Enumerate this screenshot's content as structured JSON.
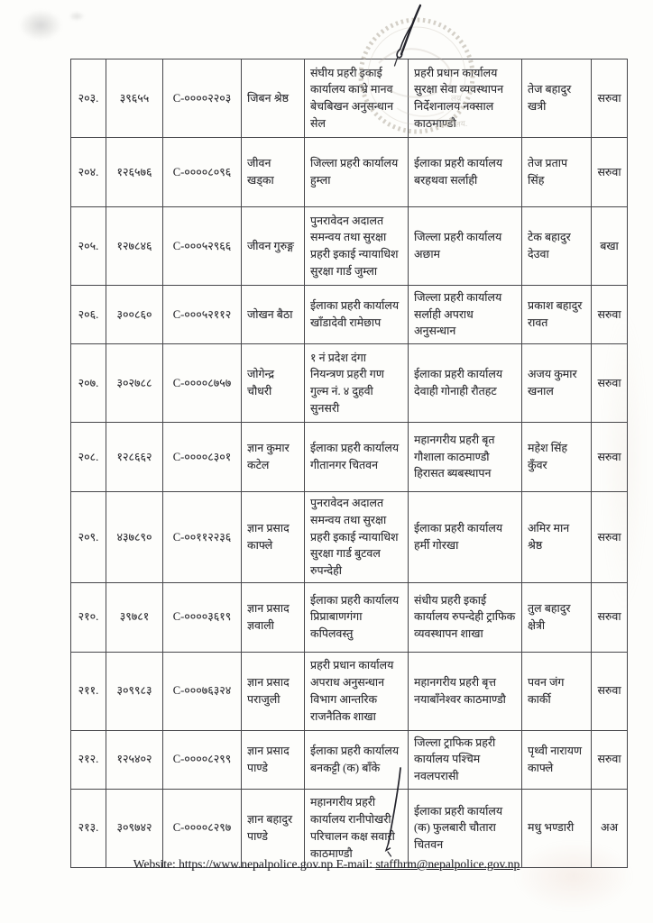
{
  "table": {
    "rows": [
      [
        "२०३.",
        "३९६५५",
        "C-००००२२०३",
        "जिबन श्रेष्ठ",
        "संघीय प्रहरी इकाई कार्यालय काभ्रे मानव बेचबिखन अनुसन्धान सेल",
        "प्रहरी प्रधान कार्यालय सुरक्षा सेवा व्यवस्थापन निर्देशनालय नक्साल काठमाण्डौ",
        "तेज बहादुर खत्री",
        "सरुवा"
      ],
      [
        "२०४.",
        "१२६५७६",
        "C-००००८०९६",
        "जीवन खड्का",
        "जिल्ला प्रहरी कार्यालय हुम्ला",
        "ईलाका प्रहरी कार्यालय बरहथवा सर्लाही",
        "तेज प्रताप सिंह",
        "सरुवा"
      ],
      [
        "२०५.",
        "१२७८४६",
        "C-०००५२९६६",
        "जीवन गुरुङ्ग",
        "पुनरावेदन अदालत समन्वय तथा सुरक्षा प्रहरी इकाई न्यायाधिश सुरक्षा गार्ड जुम्ला",
        "जिल्ला प्रहरी कार्यालय अछाम",
        "टेक बहादुर देउवा",
        "बखा"
      ],
      [
        "२०६.",
        "३००८६०",
        "C-०००५२११२",
        "जोखन बैठा",
        "ईलाका प्रहरी कार्यालय खाँडादेवी रामेछाप",
        "जिल्ला प्रहरी कार्यालय सर्लाही अपराध अनुसन्धान",
        "प्रकाश बहादुर रावत",
        "सरुवा"
      ],
      [
        "२०७.",
        "३०२७८८",
        "C-००००८७५७",
        "जोगेन्द्र चौधरी",
        "१ नं प्रदेश दंगा नियन्त्रण प्रहरी गण गुल्म नं. ४ दुहवी सुनसरी",
        "ईलाका प्रहरी कार्यालय देवाही गोनाही रौतहट",
        "अजय कुमार खनाल",
        "सरुवा"
      ],
      [
        "२०८.",
        "१२८६६२",
        "C-००००८३०१",
        "ज्ञान कुमार कटेल",
        "ईलाका प्रहरी कार्यालय गीतानगर चितवन",
        "महानगरीय प्रहरी बृत गौशाला काठमाण्डौ हिरासत ब्यबस्थापन",
        "महेश सिंह कुँवर",
        "सरुवा"
      ],
      [
        "२०९.",
        "४३७८९०",
        "C-००११२२३६",
        "ज्ञान प्रसाद काफ्ले",
        "पुनरावेदन अदालत समन्वय तथा सुरक्षा प्रहरी इकाई न्यायाधिश सुरक्षा गार्ड बुटवल रुपन्देही",
        "ईलाका प्रहरी कार्यालय हर्मी गोरखा",
        "अमिर मान श्रेष्ठ",
        "सरुवा"
      ],
      [
        "२१०.",
        "३९७८१",
        "C-००००३६१९",
        "ज्ञान प्रसाद ज्ञवाली",
        "ईलाका प्रहरी कार्यालय प्रिप्राबाणगंगा कपिलवस्तु",
        "संधीय प्रहरी इकाई कार्यालय रुपन्देही ट्राफिक व्यवस्थापन शाखा",
        "तुल बहादुर क्षेत्री",
        "सरुवा"
      ],
      [
        "२११.",
        "३०९९८३",
        "C-०००७६३२४",
        "ज्ञान प्रसाद पराजुली",
        "प्रहरी प्रधान कार्यालय अपराध अनुसन्धान विभाग आन्तरिक राजनैतिक शाखा",
        "महानगरीय प्रहरी बृत्त नयाबाँनेश्वर काठमाण्डौ",
        "पवन जंग कार्की",
        "सरुवा"
      ],
      [
        "२१२.",
        "१२५४०२",
        "C-००००८२९९",
        "ज्ञान प्रसाद पाण्डे",
        "ईलाका प्रहरी कार्यालय बनकट्टी (क) बाँके",
        "जिल्ला ट्राफिक प्रहरी कार्यालय पश्चिम नवलपरासी",
        "पृथ्वी नारायण काफ्ले",
        "सरुवा"
      ],
      [
        "२१३.",
        "३०९७४२",
        "C-००००८२९७",
        "ज्ञान बहादुर पाण्डे",
        "महानगरीय प्रहरी कार्यालय रानीपोखरी परिचालन कक्ष सवारी काठमाण्डौ",
        "ईलाका प्रहरी कार्यालय (क) फुलबारी चौतारा चितवन",
        "मधु भण्डारी",
        "अअ"
      ]
    ]
  },
  "footer": {
    "website_label": "Website:",
    "website_url": "https://www.nepalpolice.gov.np",
    "email_label": "E-mail:",
    "email": "staffhrm@nepalpolice.gov.np"
  },
  "annotations": {
    "stamp_fragment_1": "कार्यालय.",
    "stamp_fragment_2": "लय"
  },
  "colors": {
    "ink": "#2b2b30",
    "border": "#46464a",
    "paper": "#fdfdfb",
    "stamp": "#b3ac9f",
    "pen": "#23232b"
  }
}
